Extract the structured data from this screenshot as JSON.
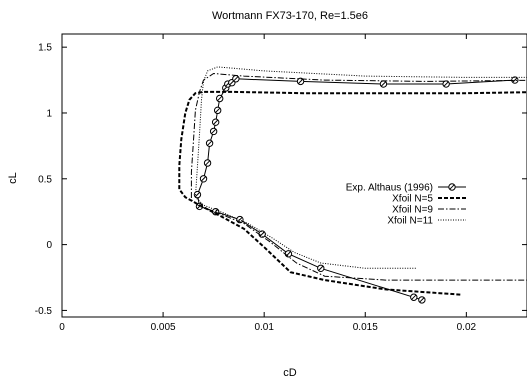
{
  "chart_data": {
    "type": "line",
    "title": "Wortmann FX73-170, Re=1.5e6",
    "xlabel": "cD",
    "ylabel": "cL",
    "xlim": [
      0,
      0.023
    ],
    "ylim": [
      -0.55,
      1.6
    ],
    "xticks": [
      0,
      0.005,
      0.01,
      0.015,
      0.02
    ],
    "xtick_labels": [
      "0",
      "0.005",
      "0.01",
      "0.015",
      "0.02"
    ],
    "yticks": [
      -0.5,
      0,
      0.5,
      1,
      1.5
    ],
    "ytick_labels": [
      "-0.5",
      "0",
      "0.5",
      "1",
      "1.5"
    ],
    "grid": false,
    "legend_position": "center-right",
    "series": [
      {
        "name": "Exp. Althaus (1996)",
        "style": "line-with-markers",
        "points": [
          [
            0.0178,
            -0.42
          ],
          [
            0.0174,
            -0.4
          ],
          [
            0.0128,
            -0.18
          ],
          [
            0.0112,
            -0.07
          ],
          [
            0.0099,
            0.08
          ],
          [
            0.0088,
            0.19
          ],
          [
            0.0076,
            0.25
          ],
          [
            0.0068,
            0.29
          ],
          [
            0.0067,
            0.38
          ],
          [
            0.007,
            0.5
          ],
          [
            0.0072,
            0.62
          ],
          [
            0.0073,
            0.77
          ],
          [
            0.0075,
            0.86
          ],
          [
            0.0076,
            0.93
          ],
          [
            0.0077,
            1.02
          ],
          [
            0.0078,
            1.11
          ],
          [
            0.0081,
            1.19
          ],
          [
            0.0082,
            1.22
          ],
          [
            0.0084,
            1.23
          ],
          [
            0.0086,
            1.26
          ],
          [
            0.0118,
            1.24
          ],
          [
            0.0159,
            1.22
          ],
          [
            0.019,
            1.22
          ],
          [
            0.0224,
            1.25
          ]
        ]
      },
      {
        "name": "Xfoil N=5",
        "style": "dashed",
        "points": [
          [
            0.0197,
            -0.38
          ],
          [
            0.016,
            -0.34
          ],
          [
            0.013,
            -0.27
          ],
          [
            0.0113,
            -0.21
          ],
          [
            0.01,
            -0.02
          ],
          [
            0.009,
            0.12
          ],
          [
            0.0078,
            0.22
          ],
          [
            0.0068,
            0.3
          ],
          [
            0.0061,
            0.36
          ],
          [
            0.0058,
            0.42
          ],
          [
            0.0058,
            0.6
          ],
          [
            0.0059,
            0.8
          ],
          [
            0.0061,
            1.0
          ],
          [
            0.0063,
            1.1
          ],
          [
            0.0066,
            1.15
          ],
          [
            0.007,
            1.16
          ],
          [
            0.0085,
            1.16
          ],
          [
            0.012,
            1.15
          ],
          [
            0.016,
            1.15
          ],
          [
            0.02,
            1.15
          ],
          [
            0.024,
            1.16
          ]
        ]
      },
      {
        "name": "Xfoil N=9",
        "style": "dash-dot",
        "points": [
          [
            0.024,
            -0.27
          ],
          [
            0.02,
            -0.27
          ],
          [
            0.016,
            -0.27
          ],
          [
            0.013,
            -0.24
          ],
          [
            0.0116,
            -0.14
          ],
          [
            0.0103,
            0.02
          ],
          [
            0.009,
            0.16
          ],
          [
            0.0077,
            0.24
          ],
          [
            0.0068,
            0.29
          ],
          [
            0.0064,
            0.34
          ],
          [
            0.0064,
            0.55
          ],
          [
            0.0065,
            0.78
          ],
          [
            0.0066,
            1.02
          ],
          [
            0.0068,
            1.16
          ],
          [
            0.007,
            1.25
          ],
          [
            0.0075,
            1.3
          ],
          [
            0.009,
            1.28
          ],
          [
            0.013,
            1.25
          ],
          [
            0.018,
            1.24
          ],
          [
            0.024,
            1.25
          ]
        ]
      },
      {
        "name": "Xfoil N=11",
        "style": "dotted",
        "points": [
          [
            0.0175,
            -0.18
          ],
          [
            0.015,
            -0.18
          ],
          [
            0.0128,
            -0.14
          ],
          [
            0.0115,
            -0.06
          ],
          [
            0.0104,
            0.05
          ],
          [
            0.0092,
            0.16
          ],
          [
            0.008,
            0.24
          ],
          [
            0.007,
            0.3
          ],
          [
            0.0066,
            0.36
          ],
          [
            0.0067,
            0.6
          ],
          [
            0.0068,
            0.84
          ],
          [
            0.0069,
            1.1
          ],
          [
            0.007,
            1.24
          ],
          [
            0.0072,
            1.32
          ],
          [
            0.0077,
            1.35
          ],
          [
            0.01,
            1.32
          ],
          [
            0.015,
            1.28
          ],
          [
            0.02,
            1.27
          ],
          [
            0.024,
            1.27
          ]
        ]
      }
    ]
  }
}
